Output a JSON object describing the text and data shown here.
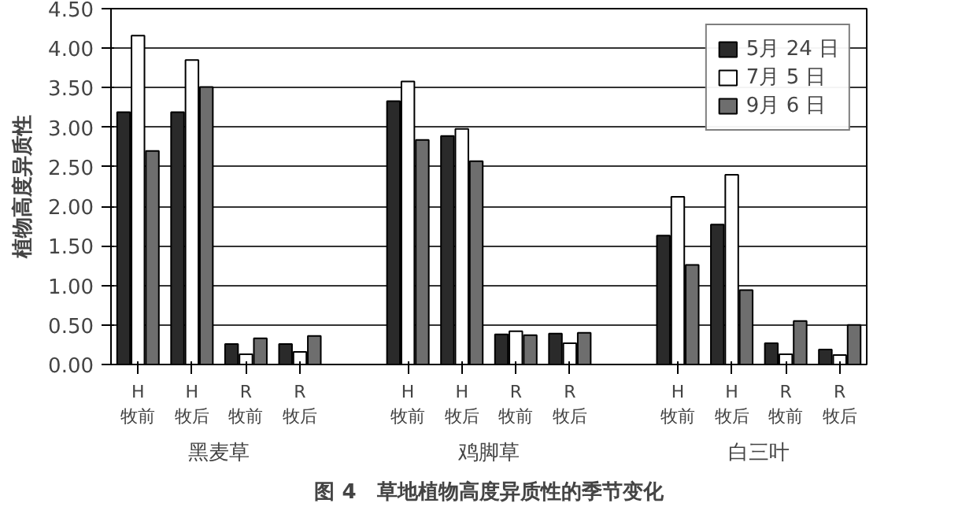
{
  "chart_data": {
    "type": "bar",
    "categories": [
      "H\n牧前",
      "H\n牧后",
      "R\n牧前",
      "R\n牧后",
      null,
      "H\n牧前",
      "H\n牧后",
      "R\n牧前",
      "R\n牧后",
      null,
      "H\n牧前",
      "H\n牧后",
      "R\n牧前",
      "R\n牧后"
    ],
    "series": [
      {
        "name": "5月 24 日",
        "color": "#2a2a2a",
        "values": [
          3.19,
          3.19,
          0.26,
          0.26,
          null,
          3.33,
          2.89,
          0.38,
          0.39,
          null,
          1.63,
          1.77,
          0.27,
          0.19
        ]
      },
      {
        "name": "7月 5 日",
        "color": "#ffffff",
        "values": [
          4.16,
          3.85,
          0.13,
          0.16,
          null,
          3.58,
          2.98,
          0.42,
          0.27,
          null,
          2.12,
          2.4,
          0.13,
          0.12
        ]
      },
      {
        "name": "9月 6 日",
        "color": "#6e6e6e",
        "values": [
          2.7,
          3.51,
          0.33,
          0.36,
          null,
          2.84,
          2.57,
          0.37,
          0.4,
          null,
          1.26,
          0.94,
          0.55,
          0.5
        ]
      }
    ],
    "ylabel": "植物高度异质性",
    "ylim": [
      0,
      4.5
    ],
    "yticks": [
      {
        "value": 0,
        "label": "0.00"
      },
      {
        "value": 0.5,
        "label": "0.50"
      },
      {
        "value": 1,
        "label": "1.00"
      },
      {
        "value": 1.5,
        "label": "1.50"
      },
      {
        "value": 2,
        "label": "2.00"
      },
      {
        "value": 2.5,
        "label": "2.50"
      },
      {
        "value": 3,
        "label": "3.00"
      },
      {
        "value": 3.5,
        "label": "3.50"
      },
      {
        "value": 4,
        "label": "4.00"
      },
      {
        "value": 4.5,
        "label": "4.50"
      }
    ],
    "grid": "y",
    "legend": "top right",
    "annotations": [
      "黑麦草",
      "鸡脚草",
      "白三叶",
      "图 4　草地植物高度异质性的季节变化"
    ]
  }
}
